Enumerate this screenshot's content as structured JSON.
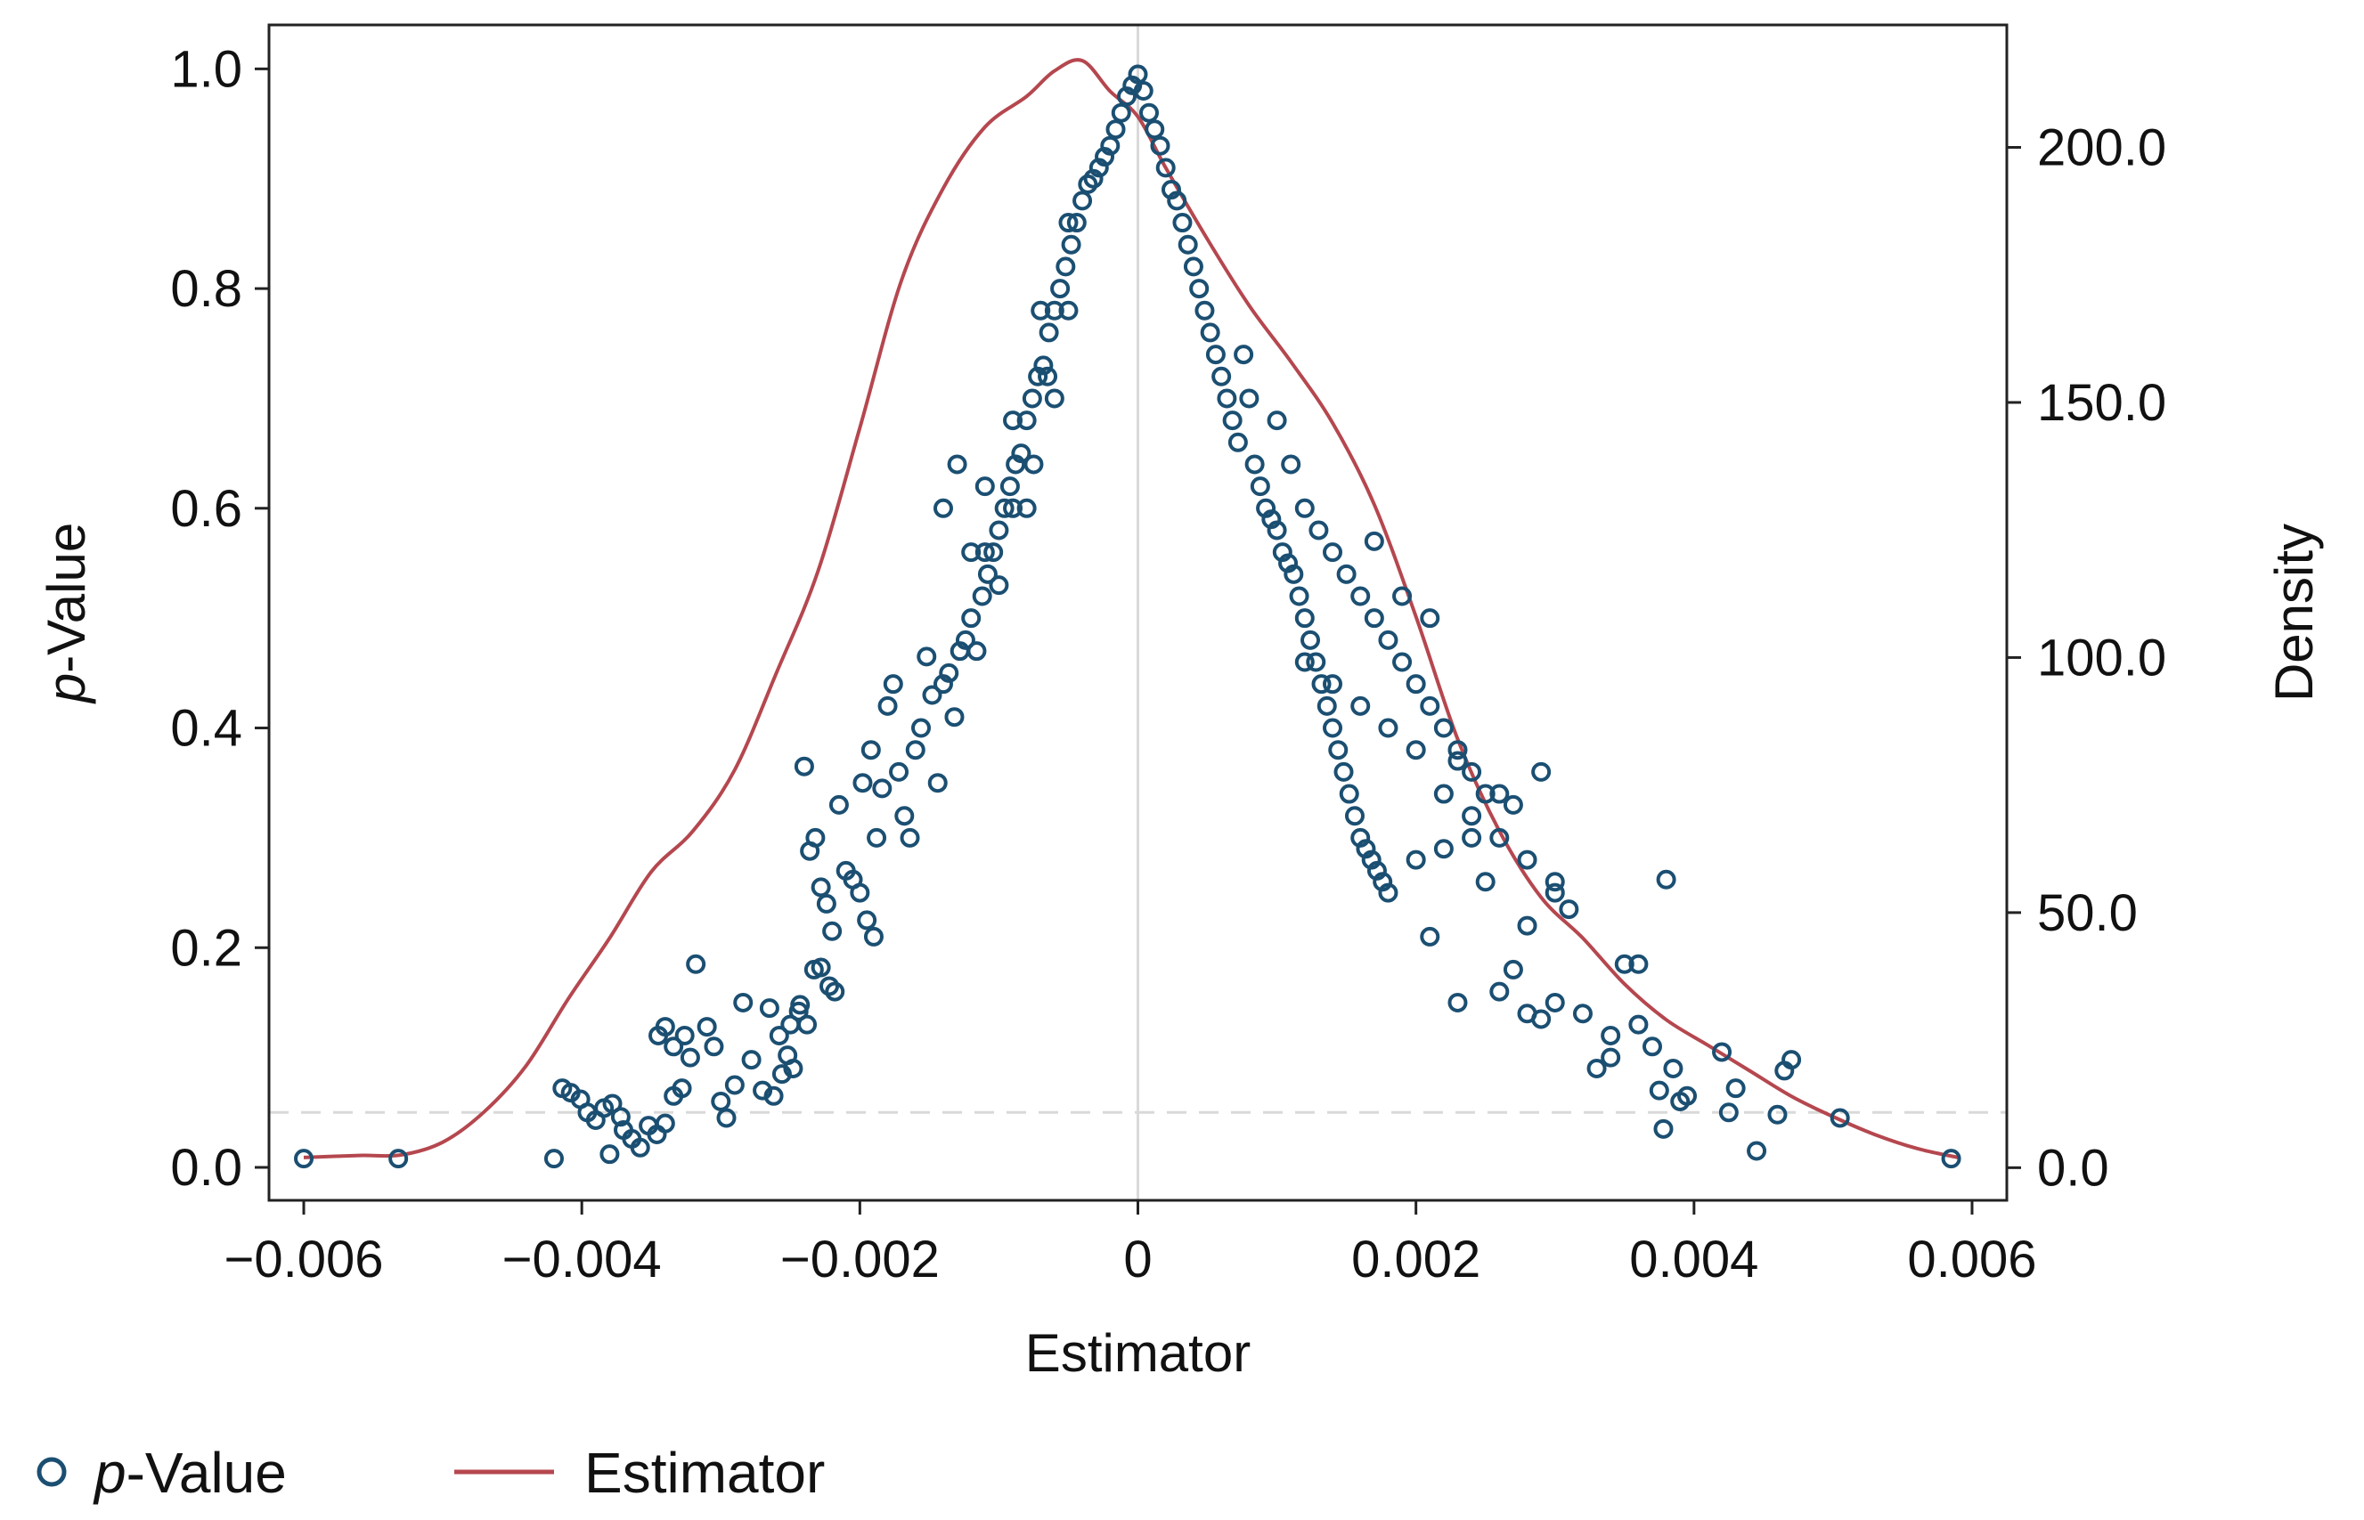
{
  "chart_data": {
    "type": "scatter",
    "x_axis": {
      "label": "Estimator",
      "range": [
        -0.00625,
        0.00625
      ],
      "ticks": [
        -0.006,
        -0.004,
        -0.002,
        0,
        0.002,
        0.004,
        0.006
      ],
      "tick_labels": [
        "−0.006",
        "−0.004",
        "−0.002",
        "0",
        "0.002",
        "0.004",
        "0.006"
      ]
    },
    "y_axis_left": {
      "label_italic": "p",
      "label_rest": "-Value",
      "range": [
        -0.03,
        1.04
      ],
      "ticks": [
        0.0,
        0.2,
        0.4,
        0.6,
        0.8,
        1.0
      ],
      "tick_labels": [
        "0.0",
        "0.2",
        "0.4",
        "0.6",
        "0.8",
        "1.0"
      ]
    },
    "y_axis_right": {
      "label": "Density",
      "range": [
        -6.4,
        224
      ],
      "ticks": [
        0,
        50,
        100,
        150,
        200
      ],
      "tick_labels": [
        "0.0",
        "50.0",
        "100.0",
        "150.0",
        "200.0"
      ]
    },
    "reference_lines": {
      "vertical_x": 0,
      "horizontal_y": 0.05
    },
    "legend": {
      "position": "bottom-left",
      "entries": [
        {
          "italic": "p",
          "rest": "-Value",
          "kind": "marker"
        },
        {
          "italic": "",
          "rest": "Estimator",
          "kind": "line"
        }
      ]
    },
    "colors": {
      "points": "#1b4f72",
      "density": "#b5474f",
      "reference": "#d9d9d9",
      "axis": "#222222"
    },
    "series": [
      {
        "name": "p-Value",
        "axis": "left",
        "points": [
          [
            -0.006,
            0.008
          ],
          [
            -0.00532,
            0.008
          ],
          [
            -0.0042,
            0.008
          ],
          [
            -0.00414,
            0.072
          ],
          [
            -0.00408,
            0.068
          ],
          [
            -0.00401,
            0.062
          ],
          [
            -0.00396,
            0.05
          ],
          [
            -0.0039,
            0.043
          ],
          [
            -0.00384,
            0.054
          ],
          [
            -0.00378,
            0.058
          ],
          [
            -0.00372,
            0.046
          ],
          [
            -0.0038,
            0.012
          ],
          [
            -0.0037,
            0.034
          ],
          [
            -0.00364,
            0.026
          ],
          [
            -0.00358,
            0.018
          ],
          [
            -0.00352,
            0.038
          ],
          [
            -0.00346,
            0.03
          ],
          [
            -0.0034,
            0.04
          ],
          [
            -0.00334,
            0.065
          ],
          [
            -0.00328,
            0.072
          ],
          [
            -0.00322,
            0.1
          ],
          [
            -0.00345,
            0.12
          ],
          [
            -0.0034,
            0.128
          ],
          [
            -0.00334,
            0.11
          ],
          [
            -0.00326,
            0.12
          ],
          [
            -0.00318,
            0.185
          ],
          [
            -0.0031,
            0.128
          ],
          [
            -0.00305,
            0.11
          ],
          [
            -0.003,
            0.06
          ],
          [
            -0.00296,
            0.045
          ],
          [
            -0.0029,
            0.075
          ],
          [
            -0.00284,
            0.15
          ],
          [
            -0.00278,
            0.098
          ],
          [
            -0.0027,
            0.07
          ],
          [
            -0.00265,
            0.145
          ],
          [
            -0.00258,
            0.12
          ],
          [
            -0.00252,
            0.102
          ],
          [
            -0.00248,
            0.09
          ],
          [
            -0.00243,
            0.148
          ],
          [
            -0.00238,
            0.13
          ],
          [
            -0.00233,
            0.18
          ],
          [
            -0.00228,
            0.182
          ],
          [
            -0.00222,
            0.165
          ],
          [
            -0.00218,
            0.16
          ],
          [
            -0.00262,
            0.065
          ],
          [
            -0.00256,
            0.085
          ],
          [
            -0.0025,
            0.13
          ],
          [
            -0.00244,
            0.142
          ],
          [
            -0.0024,
            0.365
          ],
          [
            -0.00236,
            0.288
          ],
          [
            -0.00232,
            0.3
          ],
          [
            -0.00228,
            0.255
          ],
          [
            -0.00224,
            0.24
          ],
          [
            -0.0022,
            0.215
          ],
          [
            -0.00215,
            0.33
          ],
          [
            -0.0021,
            0.27
          ],
          [
            -0.00205,
            0.262
          ],
          [
            -0.002,
            0.25
          ],
          [
            -0.00195,
            0.225
          ],
          [
            -0.0019,
            0.21
          ],
          [
            -0.00198,
            0.35
          ],
          [
            -0.00192,
            0.38
          ],
          [
            -0.00188,
            0.3
          ],
          [
            -0.00184,
            0.345
          ],
          [
            -0.0018,
            0.42
          ],
          [
            -0.00176,
            0.44
          ],
          [
            -0.00172,
            0.36
          ],
          [
            -0.00168,
            0.32
          ],
          [
            -0.00164,
            0.3
          ],
          [
            -0.0016,
            0.38
          ],
          [
            -0.00156,
            0.4
          ],
          [
            -0.00152,
            0.465
          ],
          [
            -0.00148,
            0.43
          ],
          [
            -0.00144,
            0.35
          ],
          [
            -0.0014,
            0.44
          ],
          [
            -0.00136,
            0.45
          ],
          [
            -0.00132,
            0.41
          ],
          [
            -0.00128,
            0.47
          ],
          [
            -0.00124,
            0.48
          ],
          [
            -0.0012,
            0.5
          ],
          [
            -0.00116,
            0.47
          ],
          [
            -0.00112,
            0.52
          ],
          [
            -0.00108,
            0.54
          ],
          [
            -0.00104,
            0.56
          ],
          [
            -0.001,
            0.58
          ],
          [
            -0.00096,
            0.6
          ],
          [
            -0.00092,
            0.62
          ],
          [
            -0.00088,
            0.64
          ],
          [
            -0.00084,
            0.65
          ],
          [
            -0.0008,
            0.68
          ],
          [
            -0.00076,
            0.7
          ],
          [
            -0.00072,
            0.72
          ],
          [
            -0.00068,
            0.73
          ],
          [
            -0.00064,
            0.76
          ],
          [
            -0.0006,
            0.78
          ],
          [
            -0.00056,
            0.8
          ],
          [
            -0.00052,
            0.82
          ],
          [
            -0.00048,
            0.84
          ],
          [
            -0.00044,
            0.86
          ],
          [
            -0.0004,
            0.88
          ],
          [
            -0.00036,
            0.895
          ],
          [
            -0.00032,
            0.9
          ],
          [
            -0.00028,
            0.91
          ],
          [
            -0.00024,
            0.92
          ],
          [
            -0.0002,
            0.93
          ],
          [
            -0.00016,
            0.945
          ],
          [
            -0.00012,
            0.96
          ],
          [
            -8e-05,
            0.975
          ],
          [
            -4e-05,
            0.985
          ],
          [
            0.0,
            0.995
          ],
          [
            -0.0014,
            0.6
          ],
          [
            -0.0013,
            0.64
          ],
          [
            -0.0012,
            0.56
          ],
          [
            -0.0011,
            0.62
          ],
          [
            -0.001,
            0.53
          ],
          [
            -0.0009,
            0.68
          ],
          [
            -0.0008,
            0.6
          ],
          [
            -0.0007,
            0.78
          ],
          [
            -0.0006,
            0.7
          ],
          [
            -0.0005,
            0.86
          ],
          [
            -0.0011,
            0.56
          ],
          [
            -0.0009,
            0.6
          ],
          [
            -0.00075,
            0.64
          ],
          [
            -0.00065,
            0.72
          ],
          [
            -0.0005,
            0.78
          ],
          [
            4e-05,
            0.98
          ],
          [
            8e-05,
            0.96
          ],
          [
            0.00012,
            0.945
          ],
          [
            0.00016,
            0.93
          ],
          [
            0.0002,
            0.91
          ],
          [
            0.00024,
            0.89
          ],
          [
            0.00028,
            0.88
          ],
          [
            0.00032,
            0.86
          ],
          [
            0.00036,
            0.84
          ],
          [
            0.0004,
            0.82
          ],
          [
            0.00044,
            0.8
          ],
          [
            0.00048,
            0.78
          ],
          [
            0.00052,
            0.76
          ],
          [
            0.00056,
            0.74
          ],
          [
            0.0006,
            0.72
          ],
          [
            0.00064,
            0.7
          ],
          [
            0.00068,
            0.68
          ],
          [
            0.00072,
            0.66
          ],
          [
            0.00076,
            0.74
          ],
          [
            0.0008,
            0.7
          ],
          [
            0.00084,
            0.64
          ],
          [
            0.00088,
            0.62
          ],
          [
            0.00092,
            0.6
          ],
          [
            0.00096,
            0.59
          ],
          [
            0.001,
            0.58
          ],
          [
            0.00104,
            0.56
          ],
          [
            0.00108,
            0.55
          ],
          [
            0.00112,
            0.54
          ],
          [
            0.00116,
            0.52
          ],
          [
            0.0012,
            0.5
          ],
          [
            0.00124,
            0.48
          ],
          [
            0.00128,
            0.46
          ],
          [
            0.00132,
            0.44
          ],
          [
            0.00136,
            0.42
          ],
          [
            0.0014,
            0.4
          ],
          [
            0.00144,
            0.38
          ],
          [
            0.00148,
            0.36
          ],
          [
            0.00152,
            0.34
          ],
          [
            0.00156,
            0.32
          ],
          [
            0.0016,
            0.3
          ],
          [
            0.00164,
            0.29
          ],
          [
            0.00168,
            0.28
          ],
          [
            0.00172,
            0.27
          ],
          [
            0.00176,
            0.26
          ],
          [
            0.0018,
            0.25
          ],
          [
            0.001,
            0.68
          ],
          [
            0.0011,
            0.64
          ],
          [
            0.0012,
            0.6
          ],
          [
            0.0013,
            0.58
          ],
          [
            0.0014,
            0.56
          ],
          [
            0.0015,
            0.54
          ],
          [
            0.0016,
            0.52
          ],
          [
            0.0017,
            0.5
          ],
          [
            0.0018,
            0.48
          ],
          [
            0.0019,
            0.46
          ],
          [
            0.002,
            0.44
          ],
          [
            0.0021,
            0.42
          ],
          [
            0.0022,
            0.4
          ],
          [
            0.0023,
            0.38
          ],
          [
            0.0024,
            0.36
          ],
          [
            0.0012,
            0.46
          ],
          [
            0.0014,
            0.44
          ],
          [
            0.0016,
            0.42
          ],
          [
            0.0018,
            0.4
          ],
          [
            0.002,
            0.38
          ],
          [
            0.0022,
            0.34
          ],
          [
            0.0024,
            0.32
          ],
          [
            0.0026,
            0.3
          ],
          [
            0.0028,
            0.28
          ],
          [
            0.003,
            0.26
          ],
          [
            0.0017,
            0.57
          ],
          [
            0.0019,
            0.52
          ],
          [
            0.0021,
            0.5
          ],
          [
            0.0023,
            0.37
          ],
          [
            0.0025,
            0.34
          ],
          [
            0.0026,
            0.34
          ],
          [
            0.0027,
            0.33
          ],
          [
            0.0028,
            0.22
          ],
          [
            0.0029,
            0.36
          ],
          [
            0.003,
            0.25
          ],
          [
            0.002,
            0.28
          ],
          [
            0.0021,
            0.21
          ],
          [
            0.0022,
            0.29
          ],
          [
            0.0023,
            0.15
          ],
          [
            0.0024,
            0.3
          ],
          [
            0.0025,
            0.26
          ],
          [
            0.0026,
            0.16
          ],
          [
            0.0027,
            0.18
          ],
          [
            0.0028,
            0.14
          ],
          [
            0.0029,
            0.135
          ],
          [
            0.003,
            0.15
          ],
          [
            0.0031,
            0.235
          ],
          [
            0.0032,
            0.14
          ],
          [
            0.0033,
            0.09
          ],
          [
            0.0034,
            0.12
          ],
          [
            0.0035,
            0.185
          ],
          [
            0.0036,
            0.185
          ],
          [
            0.0037,
            0.11
          ],
          [
            0.00375,
            0.07
          ],
          [
            0.0038,
            0.262
          ],
          [
            0.00385,
            0.09
          ],
          [
            0.0039,
            0.06
          ],
          [
            0.00395,
            0.065
          ],
          [
            0.00378,
            0.035
          ],
          [
            0.0042,
            0.105
          ],
          [
            0.00425,
            0.05
          ],
          [
            0.0043,
            0.072
          ],
          [
            0.00445,
            0.015
          ],
          [
            0.0046,
            0.048
          ],
          [
            0.00465,
            0.088
          ],
          [
            0.0047,
            0.098
          ],
          [
            0.00505,
            0.045
          ],
          [
            0.00585,
            0.008
          ],
          [
            0.0034,
            0.1
          ],
          [
            0.0036,
            0.13
          ]
        ]
      },
      {
        "name": "Estimator",
        "axis": "right",
        "x": [
          -0.006,
          -0.0056,
          -0.0053,
          -0.005,
          -0.0047,
          -0.0044,
          -0.0041,
          -0.0038,
          -0.0035,
          -0.0032,
          -0.0029,
          -0.0026,
          -0.0023,
          -0.002,
          -0.0017,
          -0.0014,
          -0.0011,
          -0.0008,
          -0.0006,
          -0.0004,
          -0.0002,
          0.0,
          0.0002,
          0.0005,
          0.0008,
          0.0011,
          0.0014,
          0.0017,
          0.002,
          0.0023,
          0.0026,
          0.0029,
          0.0032,
          0.0035,
          0.0038,
          0.0041,
          0.0044,
          0.0047,
          0.005,
          0.0053,
          0.0056,
          0.0059
        ],
        "values": [
          2.0,
          2.4,
          2.5,
          5.0,
          11.0,
          20.0,
          33.0,
          45.0,
          58.0,
          66.0,
          78.0,
          97.0,
          117.0,
          145.0,
          174.0,
          192.0,
          204.0,
          210.0,
          215.0,
          217.0,
          211.0,
          206.0,
          196.0,
          182.0,
          169.0,
          158.0,
          146.0,
          130.0,
          108.0,
          84.0,
          66.0,
          53.0,
          45.0,
          36.0,
          29.0,
          24.0,
          19.0,
          14.0,
          10.0,
          6.5,
          3.8,
          2.0
        ]
      }
    ]
  }
}
